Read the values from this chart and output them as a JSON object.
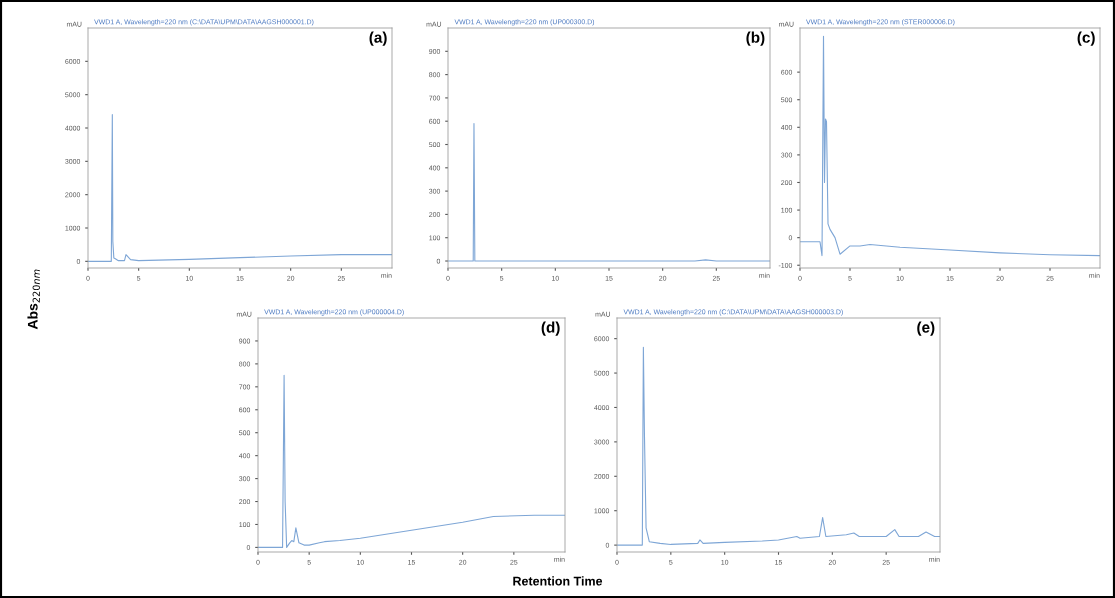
{
  "chart_data": [
    {
      "type": "line",
      "title": "(a)",
      "subtitle": "VWD1 A, Wavelength=220 nm (C:\\DATA\\UPM\\DATA\\AAGSH000001.D)",
      "xlabel": "min",
      "ylabel": "mAU",
      "annotations": [
        "Abs$_{220nm}$",
        "Retention Time"
      ],
      "xlim": [
        0,
        30
      ],
      "xticks": [
        0,
        5,
        10,
        15,
        20,
        25
      ],
      "ylim": [
        -200,
        7000
      ],
      "yticks": [
        0,
        1000,
        2000,
        3000,
        4000,
        5000,
        6000
      ],
      "grid": false,
      "series": [
        {
          "color": "#7ea6d6",
          "x": [
            0,
            2.3,
            2.4,
            2.45,
            2.55,
            2.7,
            3.0,
            3.6,
            3.75,
            4.2,
            5,
            10,
            15,
            20,
            25,
            30
          ],
          "values": [
            0,
            0,
            4400,
            600,
            100,
            80,
            20,
            20,
            200,
            50,
            20,
            60,
            110,
            160,
            200,
            200
          ]
        }
      ]
    },
    {
      "type": "line",
      "title": "(b)",
      "subtitle": "VWD1 A, Wavelength=220 nm (UP000300.D)",
      "xlabel": "min",
      "ylabel": "mAU",
      "xlim": [
        0,
        30
      ],
      "xticks": [
        0,
        5,
        10,
        15,
        20,
        25
      ],
      "ylim": [
        -30,
        1000
      ],
      "yticks": [
        0,
        100,
        200,
        300,
        400,
        500,
        600,
        700,
        800,
        900
      ],
      "grid": false,
      "series": [
        {
          "color": "#7ea6d6",
          "x": [
            0,
            2.35,
            2.42,
            2.5,
            2.6,
            23,
            24,
            25,
            30
          ],
          "values": [
            0,
            0,
            590,
            0,
            0,
            0,
            5,
            0,
            0
          ]
        }
      ]
    },
    {
      "type": "line",
      "title": "(c)",
      "subtitle": "VWD1 A, Wavelength=220 nm (STER000006.D)",
      "xlabel": "min",
      "ylabel": "mAU",
      "xlim": [
        0,
        30
      ],
      "xticks": [
        0,
        5,
        10,
        15,
        20,
        25
      ],
      "ylim": [
        -110,
        760
      ],
      "yticks": [
        -100,
        0,
        100,
        200,
        300,
        400,
        500,
        600
      ],
      "grid": false,
      "series": [
        {
          "color": "#7ea6d6",
          "x": [
            0,
            2.0,
            2.2,
            2.35,
            2.45,
            2.55,
            2.65,
            2.8,
            3.0,
            3.5,
            4.0,
            5,
            6,
            7,
            10,
            15,
            20,
            25,
            30
          ],
          "values": [
            -15,
            -15,
            -65,
            730,
            200,
            430,
            420,
            50,
            30,
            0,
            -60,
            -30,
            -30,
            -25,
            -35,
            -45,
            -55,
            -62,
            -65
          ]
        }
      ]
    },
    {
      "type": "line",
      "title": "(d)",
      "subtitle": "VWD1 A, Wavelength=220 nm (UP000004.D)",
      "xlabel": "min",
      "ylabel": "mAU",
      "xlim": [
        0,
        30
      ],
      "xticks": [
        0,
        5,
        10,
        15,
        20,
        25
      ],
      "ylim": [
        -20,
        1000
      ],
      "yticks": [
        0,
        100,
        200,
        300,
        400,
        500,
        600,
        700,
        800,
        900
      ],
      "grid": false,
      "series": [
        {
          "color": "#7ea6d6",
          "x": [
            0,
            2.4,
            2.55,
            2.65,
            2.8,
            3.1,
            3.3,
            3.5,
            3.7,
            4.0,
            4.5,
            5,
            6,
            6.5,
            8,
            10,
            15,
            20,
            23,
            27,
            30
          ],
          "values": [
            0,
            0,
            750,
            200,
            0,
            20,
            30,
            25,
            85,
            20,
            10,
            10,
            20,
            25,
            30,
            40,
            75,
            110,
            135,
            140,
            140
          ]
        }
      ]
    },
    {
      "type": "line",
      "title": "(e)",
      "subtitle": "VWD1 A, Wavelength=220 nm (C:\\DATA\\UPM\\DATA\\AAGSH000003.D)",
      "xlabel": "min",
      "ylabel": "mAU",
      "xlim": [
        0,
        30
      ],
      "xticks": [
        0,
        5,
        10,
        15,
        20,
        25
      ],
      "ylim": [
        -200,
        6600
      ],
      "yticks": [
        0,
        1000,
        2000,
        3000,
        4000,
        5000,
        6000
      ],
      "grid": false,
      "series": [
        {
          "color": "#7ea6d6",
          "x": [
            0,
            2.35,
            2.45,
            2.55,
            2.7,
            3.0,
            4,
            5,
            7.5,
            7.7,
            8,
            10,
            13.5,
            15,
            16.7,
            17,
            18.8,
            19.1,
            19.4,
            21.3,
            22,
            22.5,
            25,
            25.8,
            26.2,
            28,
            28.7,
            29.5,
            30
          ],
          "values": [
            0,
            0,
            5750,
            3200,
            500,
            100,
            50,
            20,
            50,
            150,
            50,
            80,
            120,
            150,
            250,
            200,
            250,
            800,
            250,
            300,
            350,
            250,
            250,
            450,
            250,
            250,
            380,
            250,
            250
          ]
        }
      ]
    }
  ]
}
